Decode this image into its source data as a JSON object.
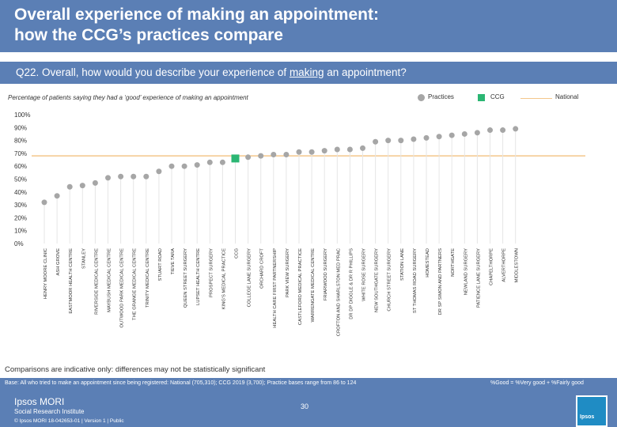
{
  "header": {
    "title_line1": "Overall experience of making an appointment:",
    "title_line2": "how the CCG’s practices compare"
  },
  "question": {
    "prefix": "Q22. Overall, how would you describe your experience of ",
    "underlined": "making",
    "suffix": " an appointment?"
  },
  "subtitle": "Percentage of patients saying they had a ‘good’ experience of making an appointment",
  "legend": {
    "practices": "Practices",
    "ccg": "CCG",
    "national": "National"
  },
  "colors": {
    "practice": "#a6a6a6",
    "ccg": "#2bb673",
    "national": "#f3c68b",
    "banner": "#5b7fb5"
  },
  "chart_data": {
    "type": "scatter",
    "ylim": [
      0,
      100
    ],
    "yticks": [
      "0%",
      "10%",
      "20%",
      "30%",
      "40%",
      "50%",
      "60%",
      "70%",
      "80%",
      "90%",
      "100%"
    ],
    "national": 68,
    "categories": [
      "HENRY MOORE CLINIC",
      "ASH GROVE",
      "EASTMOOR HEALTH CENTRE",
      "STANLEY",
      "RIVERSIDE MEDICAL CENTRE",
      "MAYBUSH MEDICAL CENTRE",
      "OUTWOOD PARK MEDICAL CENTRE",
      "THE GRANGE MEDICAL CENTRE",
      "TRINITY MEDICAL CENTRE",
      "STUART ROAD",
      "TIEVE TARA",
      "QUEEN STREET SURGERY",
      "LUPSET HEALTH CENTRE",
      "PROSPECT SURGERY",
      "KING'S MEDICAL PRACTICE",
      "CCG",
      "COLLEGE LANE SURGERY",
      "ORCHARD CROFT",
      "HEALTH CARE FIRST PARTNERSHIP",
      "PARK VIEW SURGERY",
      "CASTLEFORD MEDICAL PRACTICE",
      "WARRENGATE MEDICAL CENTRE",
      "FRIARWOOD SURGERY",
      "CROFTON AND SHARLSTON MED PRAC",
      "DR DP DIGGLE & DR R PHILLIPS",
      "WHITE ROSE SURGERY",
      "NEW SOUTHGATE SURGERY",
      "CHURCH STREET SURGERY",
      "STATION LANE",
      "ST THOMAS ROAD SURGERY",
      "HOMESTEAD",
      "DR SP SIMON AND PARTNERS",
      "NORTHGATE",
      "NEWLAND SURGERY",
      "PATIENCE LANE SURGERY",
      "CHAPELTHORPE",
      "ALVERTHORPE",
      "MIDDLESTOWN"
    ],
    "values": [
      32,
      37,
      44,
      45,
      47,
      51,
      52,
      52,
      52,
      56,
      60,
      60,
      61,
      63,
      63,
      66,
      67,
      68,
      69,
      69,
      71,
      71,
      72,
      73,
      73,
      74,
      79,
      80,
      80,
      81,
      82,
      83,
      84,
      85,
      86,
      88,
      88,
      89
    ],
    "ccg_index": 15
  },
  "comparisons_note": "Comparisons are indicative only: differences may not be statistically significant",
  "base_note": "Base: All who tried to make an appointment since being registered: National (705,310); CCG 2019 (3,700); Practice bases range from 86 to 124",
  "good_note": "%Good = %Very good + %Fairly good",
  "footer": {
    "logo": "Ipsos MORI",
    "sub": "Social Research Institute",
    "copyright": "© Ipsos MORI    18-042653-01 | Version 1 | Public",
    "page": "30",
    "badge": "Ipsos"
  }
}
